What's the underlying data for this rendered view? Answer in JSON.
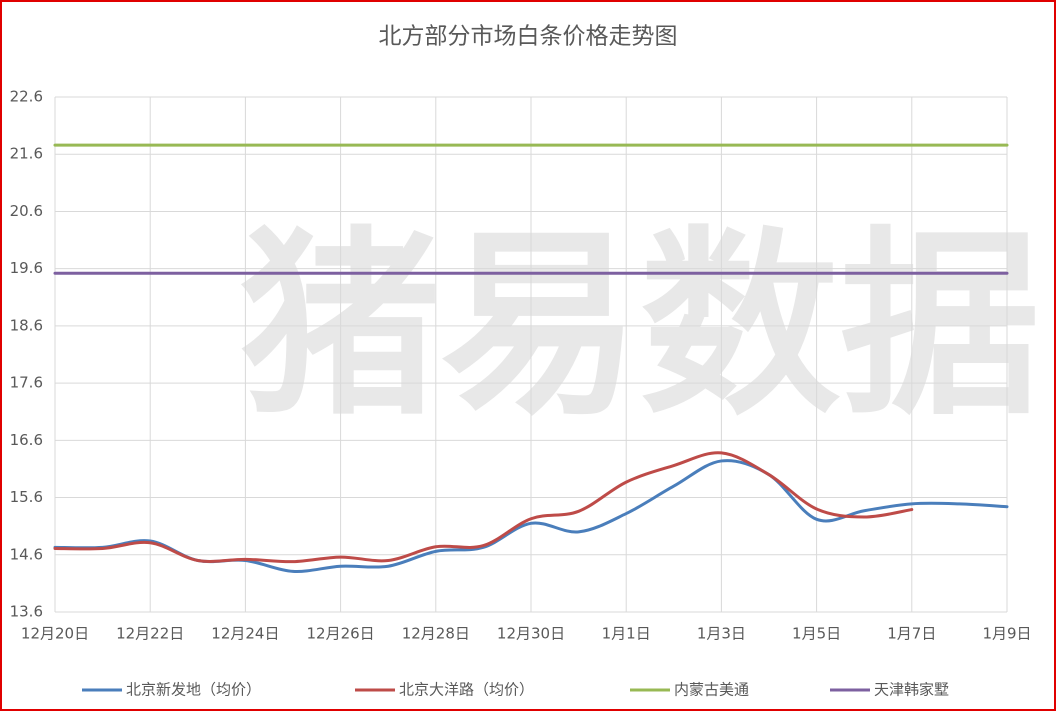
{
  "chart_data": {
    "type": "line",
    "title": "北方部分市场白条价格走势图",
    "watermark": "猪易数据",
    "categories": [
      "12月20日",
      null,
      "12月22日",
      null,
      "12月24日",
      null,
      "12月26日",
      null,
      "12月28日",
      null,
      "12月30日",
      null,
      "1月1日",
      null,
      "1月3日",
      null,
      "1月5日",
      null,
      "1月7日",
      null,
      "1月9日"
    ],
    "series": [
      {
        "name": "北京新发地（均价）",
        "color": "#4a7ebb",
        "values": [
          14.73,
          14.73,
          14.84,
          14.5,
          14.5,
          14.31,
          14.4,
          14.4,
          14.66,
          14.73,
          15.15,
          15.0,
          15.32,
          15.8,
          16.24,
          16.0,
          15.22,
          15.37,
          15.49,
          15.49,
          15.44
        ]
      },
      {
        "name": "北京大洋路（均价）",
        "color": "#be4b48",
        "values": [
          14.71,
          14.71,
          14.81,
          14.5,
          14.52,
          14.48,
          14.56,
          14.5,
          14.74,
          14.76,
          15.23,
          15.36,
          15.87,
          16.16,
          16.38,
          16.0,
          15.4,
          15.26,
          15.39,
          null,
          null
        ]
      },
      {
        "name": "内蒙古美通",
        "color": "#98b954",
        "values": [
          21.76,
          21.76,
          21.76,
          21.76,
          21.76,
          21.76,
          21.76,
          21.76,
          21.76,
          21.76,
          21.76,
          21.76,
          21.76,
          21.76,
          21.76,
          21.76,
          21.76,
          21.76,
          21.76,
          21.76,
          21.76
        ]
      },
      {
        "name": "天津韩家墅",
        "color": "#7d60a0",
        "values": [
          19.52,
          19.52,
          19.52,
          19.52,
          19.52,
          19.52,
          19.52,
          19.52,
          19.52,
          19.52,
          19.52,
          19.52,
          19.52,
          19.52,
          19.52,
          19.52,
          19.52,
          19.52,
          19.52,
          19.52,
          19.52
        ]
      }
    ],
    "ylim": [
      13.6,
      22.6
    ],
    "yticks": [
      13.6,
      14.6,
      15.6,
      16.6,
      17.6,
      18.6,
      19.6,
      20.6,
      21.6,
      22.6
    ],
    "grid": true,
    "legend": "bottom"
  }
}
